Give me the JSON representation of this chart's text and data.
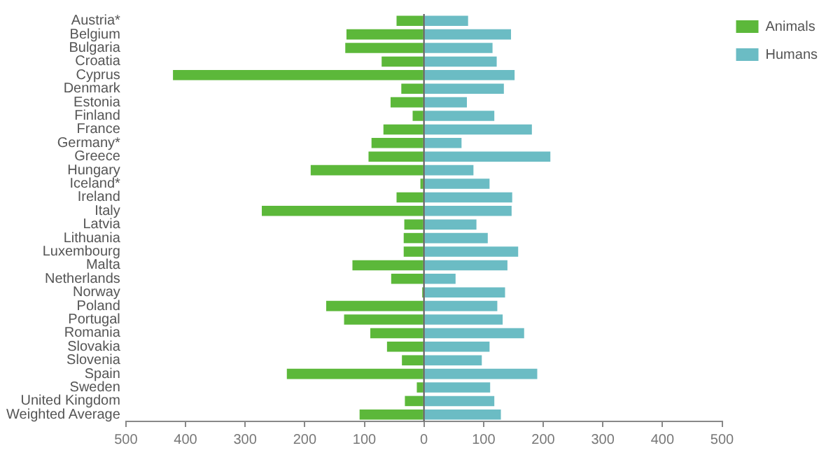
{
  "chart_data": {
    "type": "bar",
    "orientation": "horizontal",
    "categories": [
      "Austria*",
      "Belgium",
      "Bulgaria",
      "Croatia",
      "Cyprus",
      "Denmark",
      "Estonia",
      "Finland",
      "France",
      "Germany*",
      "Greece",
      "Hungary",
      "Iceland*",
      "Ireland",
      "Italy",
      "Latvia",
      "Lithuania",
      "Luxembourg",
      "Malta",
      "Netherlands",
      "Norway",
      "Poland",
      "Portugal",
      "Romania",
      "Slovakia",
      "Slovenia",
      "Spain",
      "Sweden",
      "United Kingdom",
      "Weighted Average"
    ],
    "series": [
      {
        "name": "Animals",
        "color": "#5cb83a",
        "values": [
          -46,
          -130,
          -132,
          -71,
          -421,
          -38,
          -56,
          -19,
          -68,
          -88,
          -93,
          -190,
          -6,
          -46,
          -272,
          -33,
          -34,
          -34,
          -120,
          -55,
          -3,
          -164,
          -134,
          -90,
          -62,
          -37,
          -230,
          -12,
          -32,
          -108
        ]
      },
      {
        "name": "Humans",
        "color": "#6bbcc4",
        "values": [
          74,
          146,
          115,
          122,
          152,
          134,
          72,
          118,
          181,
          63,
          212,
          83,
          110,
          148,
          147,
          88,
          107,
          158,
          140,
          53,
          136,
          123,
          132,
          168,
          110,
          97,
          190,
          111,
          118,
          129
        ]
      }
    ],
    "xlim": [
      -500,
      500
    ],
    "xticks": [
      {
        "value": -500,
        "label": "500"
      },
      {
        "value": -400,
        "label": "400"
      },
      {
        "value": -300,
        "label": "300"
      },
      {
        "value": -200,
        "label": "200"
      },
      {
        "value": -100,
        "label": "100"
      },
      0,
      100,
      200,
      300,
      400,
      500
    ],
    "ref_lines": [
      {
        "axis": "x",
        "value": 0,
        "color": "#555555"
      }
    ],
    "grid": false,
    "stacked": true,
    "legend": "top right"
  }
}
